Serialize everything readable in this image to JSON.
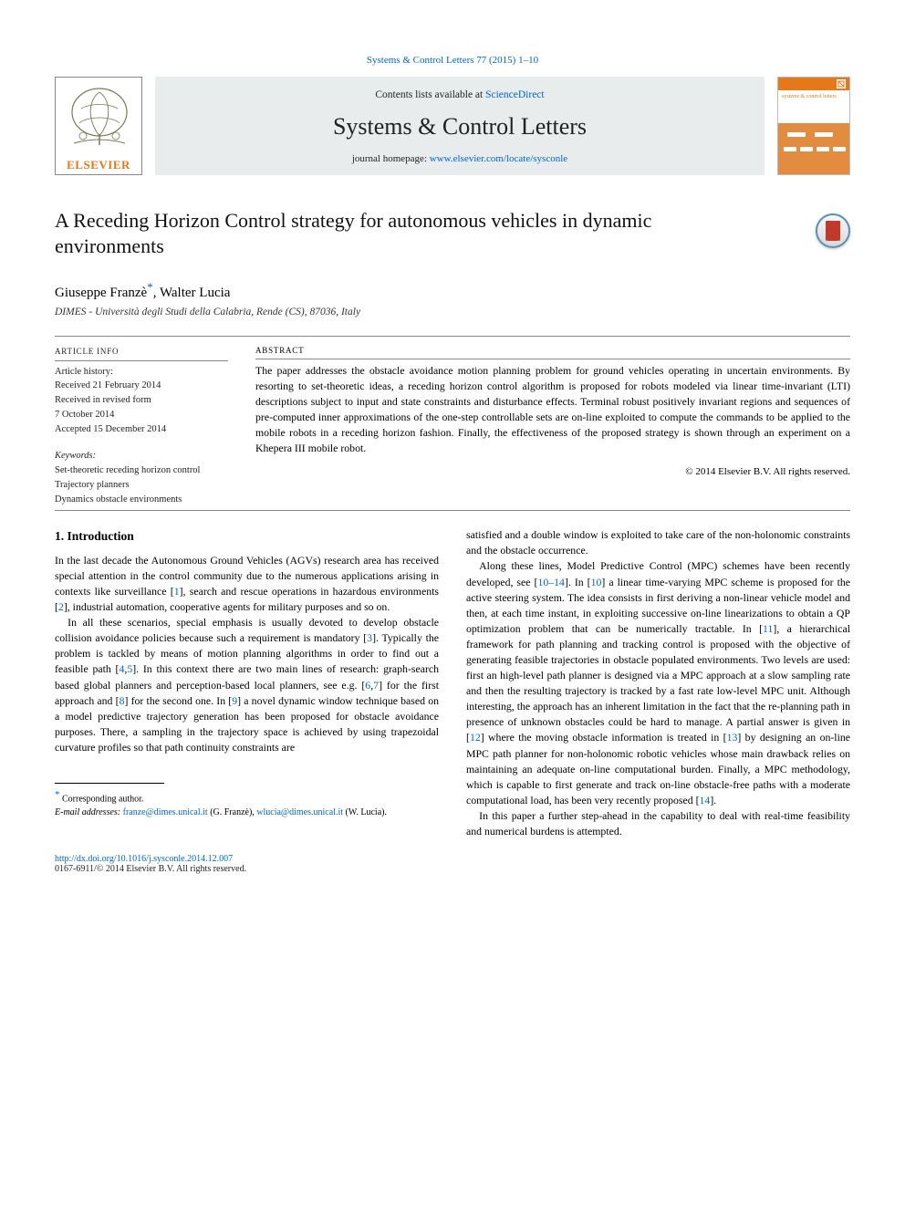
{
  "citation": "Systems & Control Letters 77 (2015) 1–10",
  "masthead": {
    "contents_prefix": "Contents lists available at ",
    "contents_link": "ScienceDirect",
    "journal": "Systems & Control Letters",
    "homepage_prefix": "journal homepage: ",
    "homepage_link": "www.elsevier.com/locate/sysconle",
    "publisher_word": "ELSEVIER",
    "cover_title": "systems & control letters"
  },
  "title": "A Receding Horizon Control strategy for autonomous vehicles in dynamic environments",
  "authors_html": "Giuseppe Franzè",
  "author_mark": "*",
  "author2": ", Walter Lucia",
  "affiliation": "DIMES - Università degli Studi della Calabria, Rende (CS), 87036, Italy",
  "history": {
    "heading": "ARTICLE INFO",
    "lines": [
      "Article history:",
      "Received 21 February 2014",
      "Received in revised form",
      "7 October 2014",
      "Accepted 15 December 2014"
    ],
    "kw_heading": "Keywords:",
    "keywords": [
      "Set-theoretic receding horizon control",
      "Trajectory planners",
      "Dynamics obstacle environments"
    ]
  },
  "abstract": {
    "heading": "ABSTRACT",
    "text": "The paper addresses the obstacle avoidance motion planning problem for ground vehicles operating in uncertain environments. By resorting to set-theoretic ideas, a receding horizon control algorithm is proposed for robots modeled via linear time-invariant (LTI) descriptions subject to input and state constraints and disturbance effects. Terminal robust positively invariant regions and sequences of pre-computed inner approximations of the one-step controllable sets are on-line exploited to compute the commands to be applied to the mobile robots in a receding horizon fashion. Finally, the effectiveness of the proposed strategy is shown through an experiment on a Khepera III mobile robot.",
    "copyright": "© 2014 Elsevier B.V. All rights reserved."
  },
  "intro_heading": "1. Introduction",
  "left_col": "In the last decade the Autonomous Ground Vehicles (AGVs) research area has received special attention in the control community due to the numerous applications arising in contexts like surveillance [1], search and rescue operations in hazardous environments [2], industrial automation, cooperative agents for military purposes and so on.\nIn all these scenarios, special emphasis is usually devoted to develop obstacle collision avoidance policies because such a requirement is mandatory [3]. Typically the problem is tackled by means of motion planning algorithms in order to find out a feasible path [4,5]. In this context there are two main lines of research: graph-search based global planners and perception-based local planners, see e.g. [6,7] for the first approach and [8] for the second one. In [9] a novel dynamic window technique based on a model predictive trajectory generation has been proposed for obstacle avoidance purposes. There, a sampling in the trajectory space is achieved by using trapezoidal curvature profiles so that path continuity constraints are",
  "right_col": "satisfied and a double window is exploited to take care of the non-holonomic constraints and the obstacle occurrence.\nAlong these lines, Model Predictive Control (MPC) schemes have been recently developed, see [10–14]. In [10] a linear time-varying MPC scheme is proposed for the active steering system. The idea consists in first deriving a non-linear vehicle model and then, at each time instant, in exploiting successive on-line linearizations to obtain a QP optimization problem that can be numerically tractable. In [11], a hierarchical framework for path planning and tracking control is proposed with the objective of generating feasible trajectories in obstacle populated environments. Two levels are used: first an high-level path planner is designed via a MPC approach at a slow sampling rate and then the resulting trajectory is tracked by a fast rate low-level MPC unit. Although interesting, the approach has an inherent limitation in the fact that the re-planning path in presence of unknown obstacles could be hard to manage. A partial answer is given in [12] where the moving obstacle information is treated in [13] by designing an on-line MPC path planner for non-holonomic robotic vehicles whose main drawback relies on maintaining an adequate on-line computational burden. Finally, a MPC methodology, which is capable to first generate and track on-line obstacle-free paths with a moderate computational load, has been very recently proposed [14].\nIn this paper a further step-ahead in the capability to deal with real-time feasibility and numerical burdens is attempted.",
  "footnotes": {
    "line1_pre": "∗ Corresponding author.",
    "email_label": "E-mail addresses: ",
    "email1": "franze@dimes.unical.it",
    "email1_who": " (G. Franzè), ",
    "email2": "wlucia@dimes.unical.it",
    "email2_who": " (W. Lucia)."
  },
  "doi": "http://dx.doi.org/10.1016/j.sysconle.2014.12.007",
  "bottom_copy": "0167-6911/© 2014 Elsevier B.V. All rights reserved.",
  "refs": [
    "1",
    "2",
    "3",
    "4",
    "5",
    "6",
    "7",
    "8",
    "9",
    "10",
    "10–14",
    "11",
    "12",
    "13",
    "14"
  ]
}
